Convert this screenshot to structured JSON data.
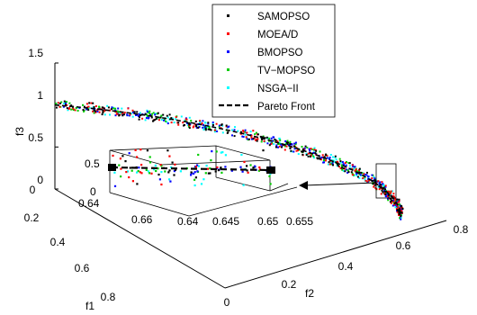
{
  "chart_data": {
    "type": "scatter",
    "projection": "3d",
    "title": "",
    "xlabel": "f1",
    "ylabel": "f2",
    "zlabel": "f3",
    "xlim": [
      0,
      0.8
    ],
    "ylim": [
      0,
      0.8
    ],
    "zlim": [
      0,
      1.5
    ],
    "x_ticks": [
      "0",
      "0.2",
      "0.4",
      "0.6",
      "0.8"
    ],
    "y_ticks": [
      "0",
      "0.2",
      "0.4",
      "0.6",
      "0.8"
    ],
    "z_ticks": [
      "0",
      "0.5",
      "1",
      "1.5"
    ],
    "grid": false,
    "legend_position": "top-right",
    "front": {
      "name": "Pareto Front",
      "shape": "f1^2 + f2^2 + f3^2 = 1 (first octant)",
      "style": "dashed",
      "color": "#000000"
    },
    "series": [
      {
        "name": "SAMOPSO",
        "color": "#000000",
        "marker": "dot"
      },
      {
        "name": "MOEA/D",
        "color": "#ff0000",
        "marker": "dot"
      },
      {
        "name": "BMOPSO",
        "color": "#0000ff",
        "marker": "dot"
      },
      {
        "name": "TV−MOPSO",
        "color": "#00cc00",
        "marker": "dot"
      },
      {
        "name": "NSGA−II",
        "color": "#00ffff",
        "marker": "dot"
      }
    ],
    "inset": {
      "zoom_of": "region near f1 ≈ 0.64–0.66, f2 ≈ 0.64–0.655",
      "xlim": [
        0.64,
        0.665
      ],
      "ylim": [
        0.64,
        0.655
      ],
      "zlim": [
        0,
        0.5
      ],
      "x_ticks": [
        "0.64",
        "0.66"
      ],
      "y_ticks": [
        "0.64",
        "0.645",
        "0.65",
        "0.655"
      ],
      "z_ticks": [
        "0",
        "0.5"
      ]
    }
  }
}
